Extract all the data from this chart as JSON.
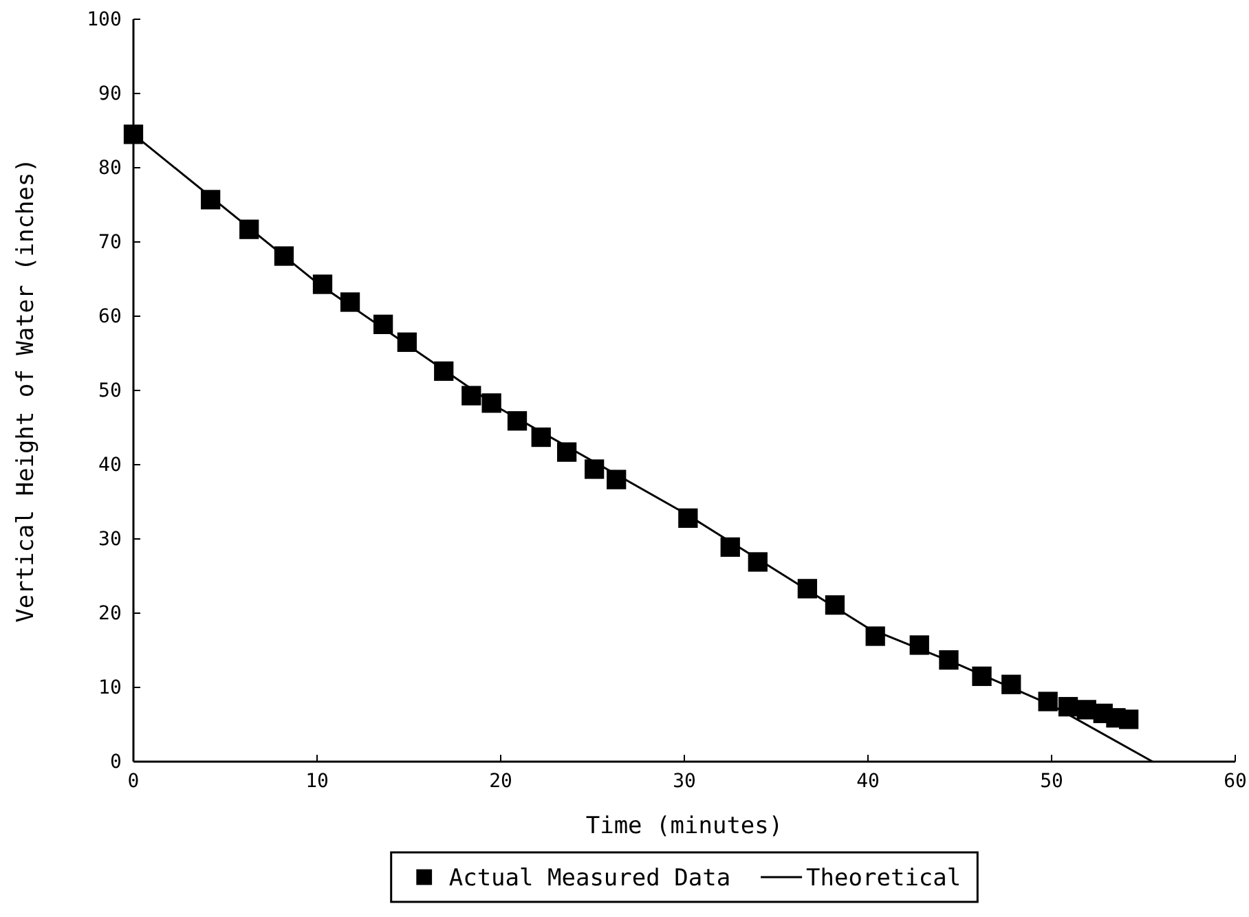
{
  "chart_data": {
    "type": "scatter",
    "xlabel": "Time (minutes)",
    "ylabel": "Vertical Height of Water (inches)",
    "xlim": [
      0,
      60
    ],
    "xticks": [
      0,
      10,
      20,
      30,
      40,
      50,
      60
    ],
    "ylim": [
      0,
      100
    ],
    "yticks": [
      0,
      10,
      20,
      30,
      40,
      50,
      60,
      70,
      80,
      90,
      100
    ],
    "grid": false,
    "legend": "bottom",
    "series": [
      {
        "name": "Actual Measured Data",
        "marker": "square",
        "color": "#000000",
        "x": [
          0,
          4.2,
          6.3,
          8.2,
          10.3,
          11.8,
          13.6,
          14.9,
          16.9,
          18.4,
          19.5,
          20.9,
          22.2,
          23.6,
          25.1,
          26.3,
          30.2,
          32.5,
          34,
          36.7,
          38.2,
          40.4,
          42.8,
          44.4,
          46.2,
          47.8,
          49.8,
          50.9,
          51.9,
          52.8,
          53.5,
          54.2
        ],
        "values": [
          84.5,
          75.7,
          71.7,
          68.1,
          64.3,
          61.9,
          58.9,
          56.5,
          52.6,
          49.3,
          48.3,
          45.9,
          43.7,
          41.7,
          39.4,
          38,
          32.8,
          28.9,
          26.9,
          23.3,
          21.1,
          16.9,
          15.7,
          13.7,
          11.5,
          10.4,
          8.1,
          7.4,
          7,
          6.5,
          5.9,
          5.7
        ]
      },
      {
        "name": "Theoretical",
        "type": "line",
        "marker": "none",
        "line_style": "solid",
        "color": "#000000",
        "x": [
          0,
          10,
          20,
          30,
          40,
          45,
          50,
          55.5
        ],
        "values": [
          84.5,
          64.5,
          47.5,
          33.5,
          18,
          13,
          7.6,
          0
        ]
      }
    ]
  }
}
